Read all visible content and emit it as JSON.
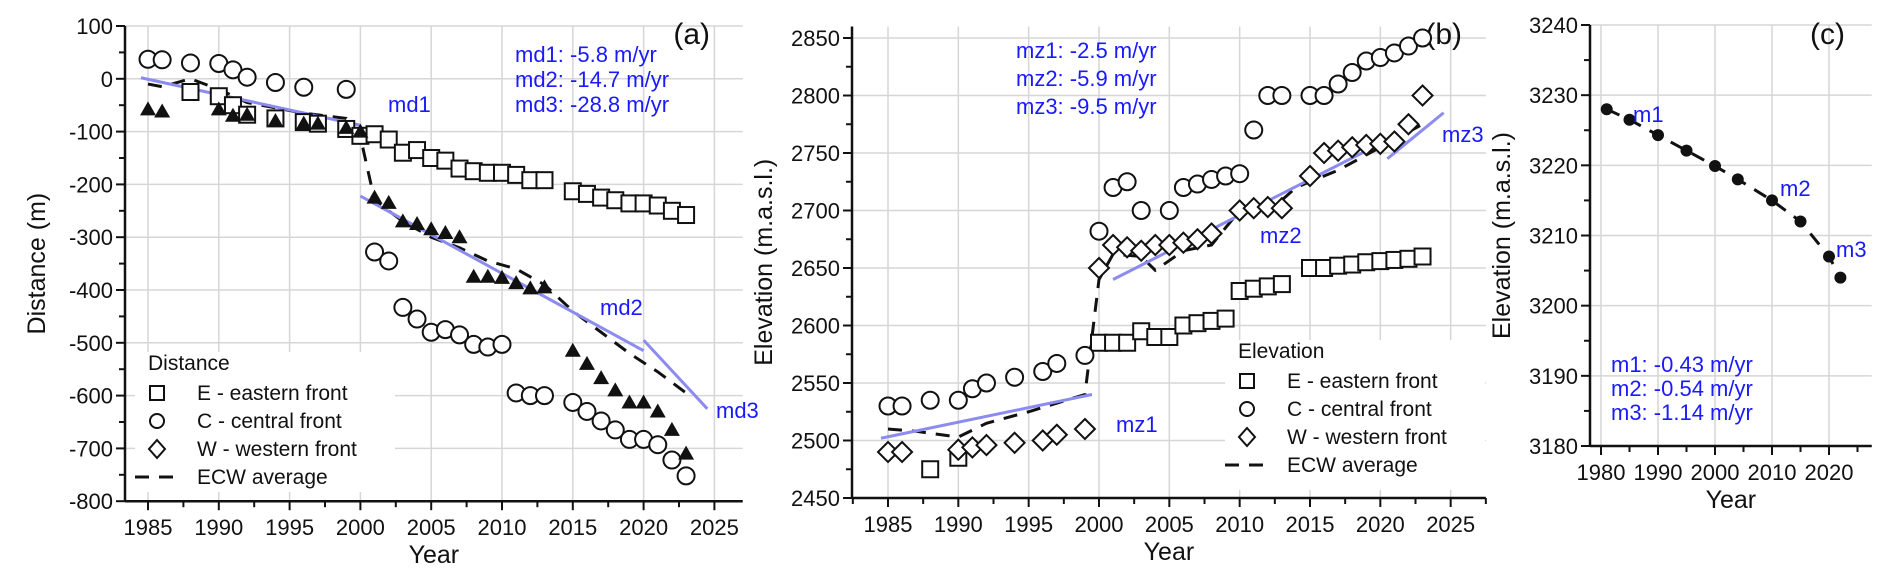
{
  "chart_data": [
    {
      "type": "scatter",
      "panel_label": "(a)",
      "title": "",
      "xlabel": "Year",
      "ylabel": "Distance (m)",
      "xlim": [
        1983,
        2027
      ],
      "ylim": [
        -800,
        100
      ],
      "xticks": [
        1985,
        1990,
        1995,
        2000,
        2005,
        2010,
        2015,
        2020,
        2025
      ],
      "yticks": [
        100,
        0,
        -100,
        -200,
        -300,
        -400,
        -500,
        -600,
        -700,
        -800
      ],
      "grid": true,
      "legend": {
        "title": "Distance",
        "placement": "bottom-left",
        "entries": [
          "E - eastern front",
          "C - central front",
          "W - western front",
          "ECW average"
        ]
      },
      "series": [
        {
          "name": "E - eastern front",
          "marker": "square",
          "x": [
            1988,
            1990,
            1991,
            1992,
            1994,
            1996,
            1997,
            1999,
            2000,
            2001,
            2002,
            2003,
            2004,
            2005,
            2006,
            2007,
            2008,
            2009,
            2010,
            2011,
            2012,
            2013,
            2015,
            2016,
            2017,
            2018,
            2019,
            2020,
            2021,
            2022,
            2023
          ],
          "y": [
            -25,
            -33,
            -50,
            -68,
            -75,
            -82,
            -85,
            -95,
            -108,
            -105,
            -115,
            -140,
            -135,
            -150,
            -155,
            -170,
            -175,
            -178,
            -178,
            -182,
            -192,
            -192,
            -213,
            -218,
            -225,
            -230,
            -236,
            -236,
            -240,
            -250,
            -258
          ]
        },
        {
          "name": "C - central front",
          "marker": "circle",
          "x": [
            1985,
            1986,
            1988,
            1990,
            1991,
            1992,
            1994,
            1996,
            1999,
            2001,
            2002,
            2003,
            2004,
            2005,
            2006,
            2007,
            2008,
            2009,
            2010,
            2011,
            2012,
            2013,
            2015,
            2016,
            2017,
            2018,
            2019,
            2020,
            2021,
            2022,
            2023
          ],
          "y": [
            37,
            36,
            30,
            29,
            17,
            3,
            -7,
            -16,
            -20,
            -328,
            -345,
            -433,
            -455,
            -480,
            -475,
            -485,
            -503,
            -508,
            -503,
            -595,
            -600,
            -600,
            -613,
            -630,
            -648,
            -665,
            -683,
            -683,
            -693,
            -722,
            -752
          ]
        },
        {
          "name": "W - western front",
          "marker": "triangle-filled",
          "x": [
            1985,
            1986,
            1990,
            1991,
            1992,
            1994,
            1996,
            1997,
            1999,
            2000,
            2001,
            2002,
            2003,
            2004,
            2005,
            2006,
            2007,
            2008,
            2009,
            2010,
            2011,
            2012,
            2013,
            2015,
            2016,
            2017,
            2018,
            2019,
            2020,
            2021,
            2022,
            2023
          ],
          "y": [
            -58,
            -62,
            -58,
            -70,
            -68,
            -80,
            -85,
            -85,
            -93,
            -100,
            -225,
            -235,
            -270,
            -275,
            -285,
            -292,
            -300,
            -375,
            -375,
            -377,
            -387,
            -397,
            -395,
            -515,
            -540,
            -567,
            -590,
            -613,
            -613,
            -630,
            -665,
            -710
          ]
        },
        {
          "name": "ECW average",
          "style": "dashed",
          "x": [
            1985,
            1986,
            1988,
            1990,
            1992,
            1994,
            1996,
            1999,
            2000,
            2001,
            2003,
            2005,
            2007,
            2009,
            2011,
            2013,
            2015,
            2017,
            2019,
            2021,
            2023
          ],
          "y": [
            -10,
            -15,
            0,
            -20,
            -45,
            -55,
            -65,
            -75,
            -110,
            -230,
            -270,
            -300,
            -320,
            -345,
            -360,
            -390,
            -440,
            -480,
            -520,
            -555,
            -595
          ]
        }
      ],
      "fits": [
        {
          "name": "md1",
          "x": [
            1984.5,
            2000
          ],
          "y": [
            2,
            -88
          ],
          "rate": "-5.8 m/yr"
        },
        {
          "name": "md2",
          "x": [
            2000,
            2020
          ],
          "y": [
            -222,
            -515
          ],
          "rate": "-14.7 m/yr"
        },
        {
          "name": "md3",
          "x": [
            2020,
            2024.5
          ],
          "y": [
            -495,
            -625
          ],
          "rate": "-28.8 m/yr"
        }
      ],
      "annotations": [
        "md1: -5.8 m/yr",
        "md2: -14.7 m/yr",
        "md3: -28.8 m/yr",
        "md1",
        "md2",
        "md3"
      ]
    },
    {
      "type": "scatter",
      "panel_label": "(b)",
      "title": "",
      "xlabel": "Year",
      "ylabel": "Elevation (m.a.s.l.)",
      "xlim": [
        1982.5,
        2027.5
      ],
      "ylim": [
        2450,
        2860
      ],
      "xticks": [
        1985,
        1990,
        1995,
        2000,
        2005,
        2010,
        2015,
        2020,
        2025
      ],
      "yticks": [
        2450,
        2500,
        2550,
        2600,
        2650,
        2700,
        2750,
        2800,
        2850
      ],
      "grid": true,
      "legend": {
        "title": "Elevation",
        "placement": "bottom-right",
        "entries": [
          "E - eastern front",
          "C - central front",
          "W - western front",
          "ECW average"
        ]
      },
      "series": [
        {
          "name": "E - eastern front",
          "marker": "square",
          "x": [
            1988,
            1990,
            2000,
            2001,
            2002,
            2003,
            2004,
            2005,
            2006,
            2007,
            2008,
            2009,
            2010,
            2011,
            2012,
            2013,
            2015,
            2016,
            2017,
            2018,
            2019,
            2020,
            2021,
            2022,
            2023
          ],
          "y": [
            2475,
            2485,
            2585,
            2585,
            2585,
            2595,
            2590,
            2590,
            2600,
            2602,
            2604,
            2606,
            2630,
            2632,
            2634,
            2636,
            2650,
            2650,
            2652,
            2653,
            2655,
            2656,
            2657,
            2658,
            2660
          ]
        },
        {
          "name": "C - central front",
          "marker": "circle",
          "x": [
            1985,
            1986,
            1988,
            1990,
            1991,
            1992,
            1994,
            1996,
            1997,
            1999,
            2000,
            2001,
            2002,
            2003,
            2005,
            2006,
            2007,
            2008,
            2009,
            2010,
            2011,
            2012,
            2013,
            2015,
            2016,
            2017,
            2018,
            2019,
            2020,
            2021,
            2022,
            2023
          ],
          "y": [
            2530,
            2530,
            2535,
            2535,
            2545,
            2550,
            2555,
            2560,
            2567,
            2574,
            2682,
            2720,
            2725,
            2700,
            2700,
            2720,
            2723,
            2727,
            2730,
            2732,
            2770,
            2800,
            2800,
            2800,
            2800,
            2810,
            2820,
            2830,
            2833,
            2837,
            2843,
            2850
          ]
        },
        {
          "name": "W - western front",
          "marker": "diamond",
          "x": [
            1985,
            1986,
            1990,
            1991,
            1992,
            1994,
            1996,
            1997,
            1999,
            2000,
            2001,
            2002,
            2003,
            2004,
            2005,
            2006,
            2007,
            2008,
            2010,
            2011,
            2012,
            2013,
            2015,
            2016,
            2017,
            2018,
            2019,
            2020,
            2021,
            2022,
            2023
          ],
          "y": [
            2490,
            2490,
            2492,
            2494,
            2496,
            2498,
            2500,
            2505,
            2510,
            2650,
            2670,
            2668,
            2665,
            2670,
            2670,
            2672,
            2675,
            2680,
            2700,
            2702,
            2703,
            2702,
            2730,
            2750,
            2752,
            2755,
            2757,
            2758,
            2760,
            2775,
            2800
          ]
        },
        {
          "name": "ECW average",
          "style": "dashed",
          "x": [
            1985,
            1987,
            1990,
            1992,
            1995,
            1999,
            2000,
            2001,
            2003,
            2004,
            2006,
            2008,
            2010,
            2012,
            2014,
            2017,
            2020,
            2023
          ],
          "y": [
            2510,
            2508,
            2503,
            2515,
            2525,
            2540,
            2640,
            2662,
            2660,
            2648,
            2665,
            2670,
            2700,
            2698,
            2720,
            2735,
            2755,
            2775
          ]
        }
      ],
      "fits": [
        {
          "name": "mz1",
          "x": [
            1984.5,
            1999.5
          ],
          "y": [
            2502,
            2540
          ],
          "rate": "-2.5 m/yr"
        },
        {
          "name": "mz2",
          "x": [
            2001,
            2019.5
          ],
          "y": [
            2640,
            2755
          ],
          "rate": "-5.9 m/yr"
        },
        {
          "name": "mz3",
          "x": [
            2020.5,
            2024.5
          ],
          "y": [
            2745,
            2785
          ],
          "rate": "-9.5 m/yr"
        }
      ],
      "annotations": [
        "mz1: -2.5 m/yr",
        "mz2: -5.9 m/yr",
        "mz3: -9.5 m/yr",
        "mz1",
        "mz2",
        "mz3"
      ]
    },
    {
      "type": "line",
      "panel_label": "(c)",
      "title": "",
      "xlabel": "Year",
      "ylabel": "Elevation (m.a.s.l.)",
      "xlim": [
        1977.5,
        2027.5
      ],
      "ylim": [
        3180,
        3240
      ],
      "xticks": [
        1980,
        1990,
        2000,
        2010,
        2020
      ],
      "yticks": [
        3180,
        3190,
        3200,
        3210,
        3220,
        3230,
        3240
      ],
      "grid": true,
      "series": [
        {
          "name": "Elevation",
          "marker": "circle-filled",
          "style": "dashed",
          "x": [
            1981,
            1985,
            1990,
            1995,
            2000,
            2004,
            2010,
            2015,
            2020,
            2022
          ],
          "y": [
            3228,
            3226.5,
            3224.3,
            3222.1,
            3219.9,
            3218,
            3215,
            3212,
            3207,
            3204
          ]
        }
      ],
      "annotations": [
        "m1",
        "m2",
        "m3",
        "m1: -0.43 m/yr",
        "m2: -0.54 m/yr",
        "m3: -1.14 m/yr"
      ]
    }
  ]
}
